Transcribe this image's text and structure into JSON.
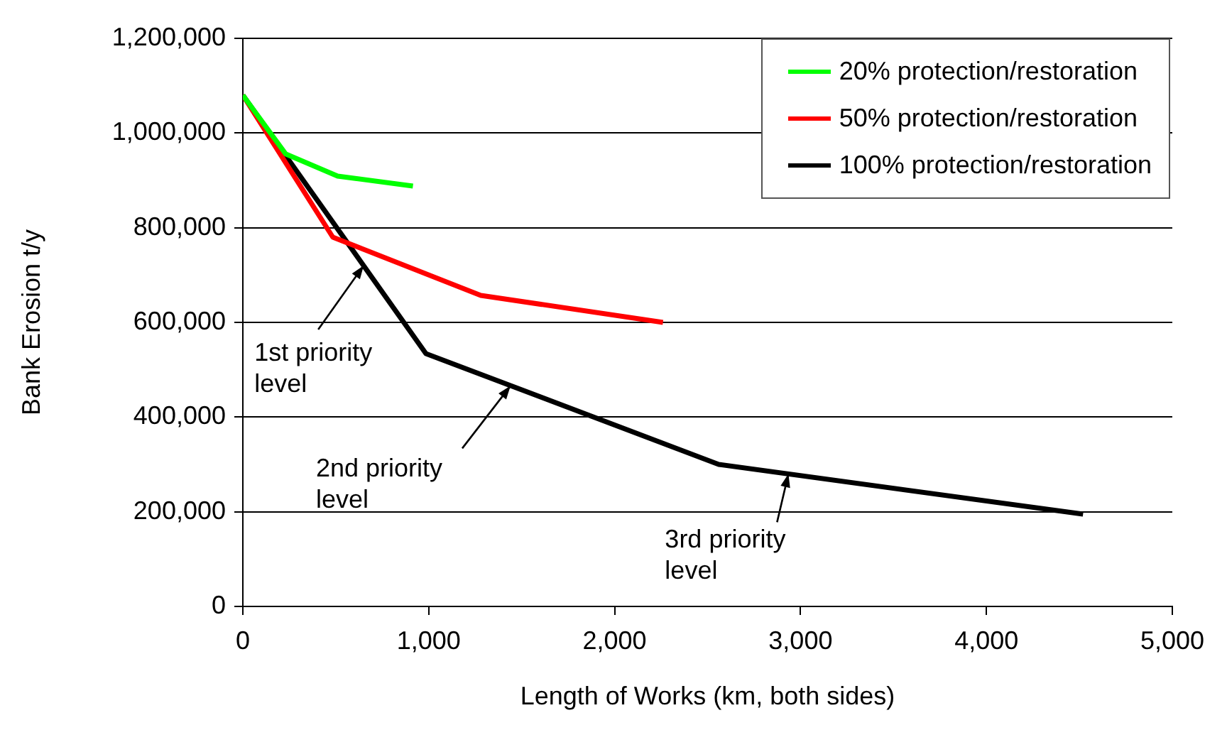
{
  "chart_data": {
    "type": "line",
    "xlabel": "Length of Works (km, both sides)",
    "ylabel": "Bank Erosion t/y",
    "xlim": [
      0,
      5000
    ],
    "xticks": [
      {
        "value": 0,
        "label": "0"
      },
      {
        "value": 1000,
        "label": "1,000"
      },
      {
        "value": 2000,
        "label": "2,000"
      },
      {
        "value": 3000,
        "label": "3,000"
      },
      {
        "value": 4000,
        "label": "4,000"
      },
      {
        "value": 5000,
        "label": "5,000"
      }
    ],
    "ylim": [
      0,
      1200000
    ],
    "yticks": [
      {
        "value": 0,
        "label": "0"
      },
      {
        "value": 200000,
        "label": "200,000"
      },
      {
        "value": 400000,
        "label": "400,000"
      },
      {
        "value": 600000,
        "label": "600,000"
      },
      {
        "value": 800000,
        "label": "800,000"
      },
      {
        "value": 1000000,
        "label": "1,000,000"
      },
      {
        "value": 1200000,
        "label": "1,200,000"
      }
    ],
    "grid": "y",
    "legend": "top right",
    "marker": "none",
    "line_style": "solid",
    "series": [
      {
        "name": "20% protection/restoration",
        "color": "#00ff00",
        "x": [
          0,
          230,
          510,
          915
        ],
        "values": [
          1080000,
          956000,
          909000,
          888000
        ]
      },
      {
        "name": "50% protection/restoration",
        "color": "#ff0000",
        "x": [
          0,
          484,
          1280,
          2260
        ],
        "values": [
          1080000,
          780000,
          657000,
          600000
        ]
      },
      {
        "name": "100% protection/restoration",
        "color": "#000000",
        "x": [
          0,
          985,
          2560,
          4520
        ],
        "values": [
          1080000,
          534000,
          300000,
          195000
        ]
      }
    ],
    "annotations": [
      {
        "text": "1st priority\nlevel",
        "x": 650,
        "y": 720000
      },
      {
        "text": "2nd priority\nlevel",
        "x": 1440,
        "y": 466000
      },
      {
        "text": "3rd priority\nlevel",
        "x": 2935,
        "y": 280000
      }
    ]
  }
}
